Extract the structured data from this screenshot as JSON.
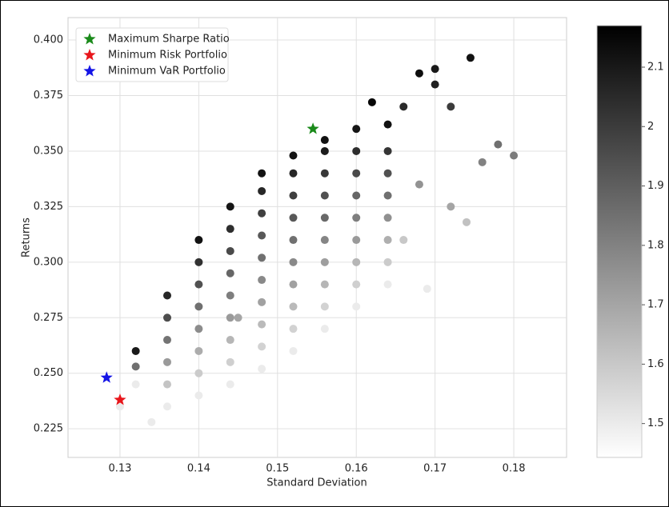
{
  "chart_data": {
    "type": "scatter",
    "x_label": "Standard Deviation",
    "y_label": "Returns",
    "xlim": [
      0.1234,
      0.1867
    ],
    "ylim": [
      0.2121,
      0.4101
    ],
    "xticks": [
      0.13,
      0.14,
      0.15,
      0.16,
      0.17,
      0.18
    ],
    "yticks": [
      {
        "value": 0.225,
        "label": "0.225"
      },
      {
        "value": 0.25,
        "label": "0.250"
      },
      {
        "value": 0.275,
        "label": "0.275"
      },
      {
        "value": 0.3,
        "label": "0.300"
      },
      {
        "value": 0.325,
        "label": "0.325"
      },
      {
        "value": 0.35,
        "label": "0.350"
      },
      {
        "value": 0.375,
        "label": "0.375"
      },
      {
        "value": 0.4,
        "label": "0.400"
      }
    ],
    "grid": true,
    "legend": "upper left",
    "colormap": "Greys",
    "colorbar": {
      "lim": [
        1.443,
        2.17
      ],
      "ticks": [
        1.5,
        1.6,
        1.7,
        1.8,
        1.9,
        2.0,
        2.1
      ]
    },
    "points": {
      "x": [
        0.132,
        0.132,
        0.132,
        0.136,
        0.136,
        0.136,
        0.136,
        0.136,
        0.136,
        0.14,
        0.14,
        0.14,
        0.14,
        0.14,
        0.14,
        0.14,
        0.14,
        0.144,
        0.144,
        0.144,
        0.144,
        0.144,
        0.144,
        0.144,
        0.144,
        0.144,
        0.148,
        0.148,
        0.148,
        0.148,
        0.148,
        0.148,
        0.148,
        0.148,
        0.148,
        0.148,
        0.152,
        0.152,
        0.152,
        0.152,
        0.152,
        0.152,
        0.152,
        0.152,
        0.152,
        0.152,
        0.156,
        0.156,
        0.156,
        0.156,
        0.156,
        0.156,
        0.156,
        0.156,
        0.156,
        0.156,
        0.16,
        0.16,
        0.16,
        0.16,
        0.16,
        0.16,
        0.16,
        0.16,
        0.16,
        0.164,
        0.164,
        0.164,
        0.164,
        0.164,
        0.164,
        0.164,
        0.164,
        0.168,
        0.1745,
        0.17,
        0.17,
        0.172,
        0.166,
        0.178,
        0.18,
        0.176,
        0.172,
        0.174,
        0.169,
        0.166,
        0.168,
        0.13,
        0.134,
        0.162,
        0.145
      ],
      "y": [
        0.245,
        0.253,
        0.26,
        0.235,
        0.245,
        0.255,
        0.265,
        0.275,
        0.285,
        0.24,
        0.25,
        0.26,
        0.27,
        0.28,
        0.29,
        0.3,
        0.31,
        0.245,
        0.255,
        0.265,
        0.275,
        0.285,
        0.295,
        0.305,
        0.315,
        0.325,
        0.252,
        0.262,
        0.272,
        0.282,
        0.292,
        0.302,
        0.312,
        0.322,
        0.332,
        0.34,
        0.26,
        0.27,
        0.28,
        0.29,
        0.3,
        0.31,
        0.32,
        0.33,
        0.34,
        0.348,
        0.27,
        0.28,
        0.29,
        0.3,
        0.31,
        0.32,
        0.33,
        0.34,
        0.35,
        0.355,
        0.28,
        0.29,
        0.3,
        0.31,
        0.32,
        0.33,
        0.34,
        0.35,
        0.36,
        0.29,
        0.3,
        0.31,
        0.32,
        0.33,
        0.34,
        0.35,
        0.362,
        0.385,
        0.392,
        0.387,
        0.38,
        0.37,
        0.37,
        0.353,
        0.348,
        0.345,
        0.325,
        0.318,
        0.288,
        0.31,
        0.335,
        0.235,
        0.228,
        0.372,
        0.275
      ],
      "c": [
        1.5,
        1.85,
        2.1,
        1.5,
        1.61,
        1.73,
        1.84,
        1.95,
        2.06,
        1.5,
        1.59,
        1.68,
        1.77,
        1.85,
        1.94,
        2.03,
        2.12,
        1.5,
        1.58,
        1.65,
        1.73,
        1.81,
        1.88,
        1.96,
        2.04,
        2.11,
        1.5,
        1.57,
        1.64,
        1.71,
        1.78,
        1.85,
        1.92,
        1.99,
        2.06,
        2.12,
        1.5,
        1.57,
        1.64,
        1.71,
        1.78,
        1.85,
        1.92,
        1.99,
        2.06,
        2.12,
        1.5,
        1.57,
        1.65,
        1.72,
        1.79,
        1.87,
        1.94,
        2.01,
        2.09,
        2.12,
        1.5,
        1.58,
        1.65,
        1.73,
        1.81,
        1.88,
        1.96,
        2.04,
        2.11,
        1.5,
        1.59,
        1.67,
        1.76,
        1.85,
        1.94,
        2.02,
        2.12,
        2.13,
        2.12,
        2.1,
        2.08,
        2.0,
        2.05,
        1.85,
        1.82,
        1.8,
        1.7,
        1.62,
        1.5,
        1.6,
        1.75,
        1.5,
        1.5,
        2.15,
        1.7
      ]
    },
    "highlights": [
      {
        "name": "Maximum Sharpe Ratio",
        "color": "#1a8a1a",
        "x": 0.1545,
        "y": 0.36
      },
      {
        "name": "Minimum Risk Portfolio",
        "color": "#e8161b",
        "x": 0.13,
        "y": 0.238
      },
      {
        "name": "Minimum VaR Portfolio",
        "color": "#1414e6",
        "x": 0.1283,
        "y": 0.248
      }
    ]
  }
}
